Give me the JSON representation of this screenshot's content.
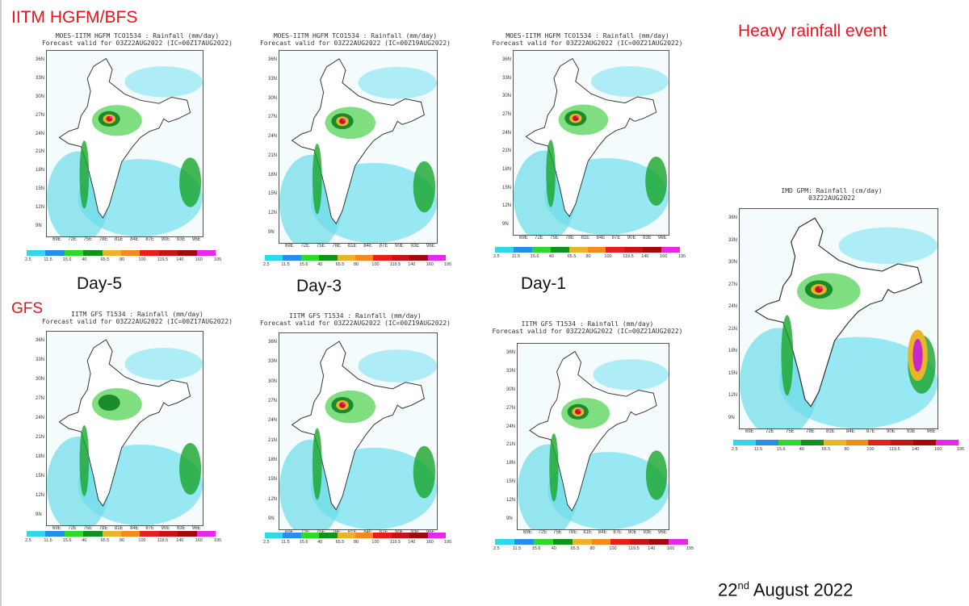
{
  "headings": {
    "hgfm": "IITM HGFM/BFS",
    "gfs": "GFS",
    "event": "Heavy rainfall event",
    "date_main": "22",
    "date_sup": "nd",
    "date_rest": " August  2022"
  },
  "day_labels": [
    "Day-5",
    "Day-3",
    "Day-1"
  ],
  "lat_ticks": [
    "36N",
    "33N",
    "30N",
    "27N",
    "24N",
    "21N",
    "18N",
    "15N",
    "12N",
    "9N"
  ],
  "lon_ticks": [
    "69E",
    "72E",
    "75E",
    "78E",
    "81E",
    "84E",
    "87E",
    "90E",
    "93E",
    "96E"
  ],
  "colorbar": {
    "labels": [
      "2.5",
      "11.5",
      "15.6",
      "40",
      "65.5",
      "80",
      "100",
      "119.5",
      "140",
      "160",
      "195"
    ],
    "colors": [
      "#30d8e8",
      "#2a8de8",
      "#2ed82e",
      "#14901e",
      "#e8b428",
      "#f08c1e",
      "#e81e1e",
      "#c81414",
      "#a00a0a",
      "#e828e8"
    ]
  },
  "panels": [
    {
      "title1": "MOES-IITM HGFM TCO1534 : Rainfall (mm/day)",
      "title2": "Forecast valid for 03Z22AUG2022 (IC=00Z17AUG2022)"
    },
    {
      "title1": "MOES-IITM HGFM TCO1534 : Rainfall (mm/day)",
      "title2": "Forecast valid for 03Z22AUG2022 (IC=00Z19AUG2022)"
    },
    {
      "title1": "MOES-IITM HGFM TCO1534 : Rainfall (mm/day)",
      "title2": "Forecast valid for 03Z22AUG2022 (IC=00Z21AUG2022)"
    },
    {
      "title1": "IMD GPM: Rainfall (cm/day)",
      "title2": "03Z22AUG2022"
    },
    {
      "title1": "IITM GFS T1534 : Rainfall (mm/day)",
      "title2": "Forecast valid for 03Z22AUG2022 (IC=00Z17AUG2022)"
    },
    {
      "title1": "IITM GFS T1534 : Rainfall (mm/day)",
      "title2": "Forecast valid for 03Z22AUG2022 (IC=00Z19AUG2022)"
    },
    {
      "title1": "IITM GFS T1534 : Rainfall (mm/day)",
      "title2": "Forecast valid for 03Z22AUG2022 (IC=00Z21AUG2022)"
    }
  ]
}
